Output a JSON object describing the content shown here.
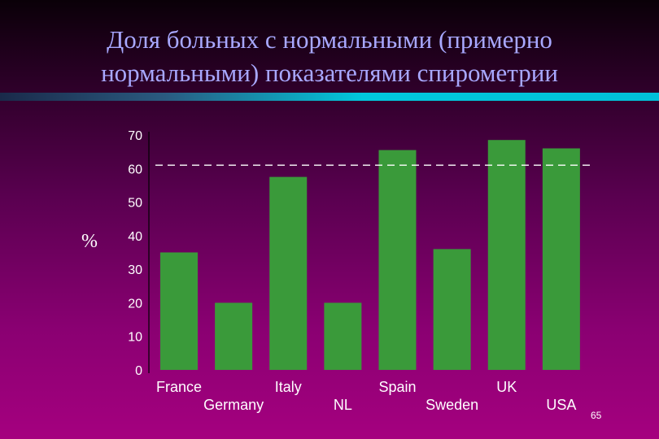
{
  "slide": {
    "title_line1": "Доля больных с нормальными (примерно",
    "title_line2": "нормальными) показателями спирометрии",
    "page_number": "65"
  },
  "colors": {
    "bar": "#3a9a3a",
    "text": "#ffffff",
    "title": "#a8a8ff",
    "divider_dark": "#1a2a4a",
    "divider_light": "#00c8dc"
  },
  "chart_data": {
    "type": "bar",
    "title": "",
    "xlabel": "",
    "ylabel": "%",
    "categories": [
      "France",
      "Germany",
      "Italy",
      "NL",
      "Spain",
      "Sweden",
      "UK",
      "USA"
    ],
    "values": [
      35,
      20,
      57.5,
      20,
      65.5,
      36,
      68.5,
      66
    ],
    "ylim": [
      0,
      70
    ],
    "yticks": [
      0,
      10,
      20,
      30,
      40,
      50,
      60,
      70
    ],
    "reference_line": 61,
    "grid": false,
    "legend": "none"
  }
}
